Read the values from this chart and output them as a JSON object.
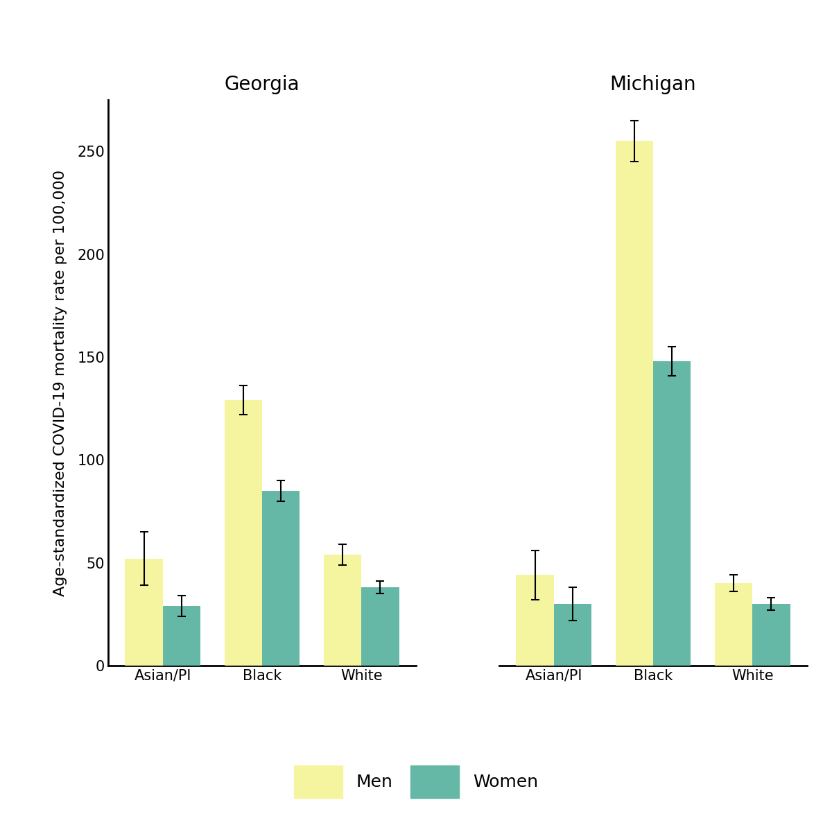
{
  "georgia": {
    "categories": [
      "Asian/PI",
      "Black",
      "White"
    ],
    "men_values": [
      52,
      129,
      54
    ],
    "women_values": [
      29,
      85,
      38
    ],
    "men_errors": [
      13,
      7,
      5
    ],
    "women_errors": [
      5,
      5,
      3
    ]
  },
  "michigan": {
    "categories": [
      "Asian/PI",
      "Black",
      "White"
    ],
    "men_values": [
      44,
      255,
      40
    ],
    "women_values": [
      30,
      148,
      30
    ],
    "men_errors": [
      12,
      10,
      4
    ],
    "women_errors": [
      8,
      7,
      3
    ]
  },
  "men_color": "#f5f5a0",
  "women_color": "#65b8a5",
  "bar_width": 0.38,
  "ylabel": "Age-standardized COVID-19 mortality rate per 100,000",
  "georgia_title": "Georgia",
  "michigan_title": "Michigan",
  "ylim": [
    0,
    275
  ],
  "yticks": [
    0,
    50,
    100,
    150,
    200,
    250
  ],
  "background_color": "#ffffff",
  "title_fontsize": 20,
  "label_fontsize": 16,
  "tick_fontsize": 15,
  "legend_fontsize": 18,
  "error_capsize": 4,
  "error_linewidth": 1.5
}
